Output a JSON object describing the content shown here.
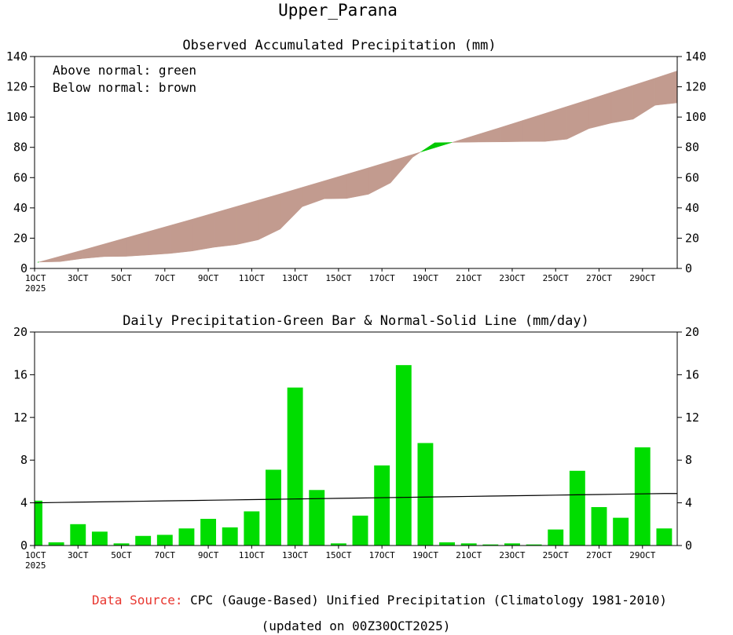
{
  "title": "Upper_Parana",
  "chart_data": [
    {
      "type": "area",
      "title": "Observed Accumulated Precipitation (mm)",
      "annotations": [
        "Above normal: green",
        "Below normal: brown"
      ],
      "x": [
        "1OCT",
        "2OCT",
        "3OCT",
        "4OCT",
        "5OCT",
        "6OCT",
        "7OCT",
        "8OCT",
        "9OCT",
        "10OCT",
        "11OCT",
        "12OCT",
        "13OCT",
        "14OCT",
        "15OCT",
        "16OCT",
        "17OCT",
        "18OCT",
        "19OCT",
        "20OCT",
        "21OCT",
        "22OCT",
        "23OCT",
        "24OCT",
        "25OCT",
        "26OCT",
        "27OCT",
        "28OCT",
        "29OCT",
        "30OCT"
      ],
      "xtick_labels": [
        "1OCT",
        "3OCT",
        "5OCT",
        "7OCT",
        "9OCT",
        "11OCT",
        "13OCT",
        "15OCT",
        "17OCT",
        "19OCT",
        "21OCT",
        "23OCT",
        "25OCT",
        "27OCT",
        "29OCT"
      ],
      "xtick_year": "2025",
      "series": [
        {
          "name": "Observed",
          "values": [
            4.2,
            4.5,
            6.5,
            7.8,
            8.0,
            8.9,
            9.9,
            11.5,
            14.0,
            15.7,
            18.9,
            26.0,
            40.8,
            46.0,
            46.2,
            49.0,
            56.5,
            73.4,
            83.0,
            83.3,
            83.5,
            83.6,
            83.8,
            83.9,
            85.4,
            92.4,
            96.0,
            98.6,
            107.8,
            109.4
          ]
        },
        {
          "name": "Normal",
          "values": [
            4.0,
            8.0,
            12.0,
            16.1,
            20.2,
            24.3,
            28.4,
            32.5,
            36.7,
            40.9,
            45.1,
            49.3,
            53.6,
            57.9,
            62.2,
            66.5,
            70.9,
            75.3,
            79.7,
            84.2,
            88.7,
            93.2,
            97.8,
            102.4,
            107.0,
            111.6,
            116.3,
            121.0,
            125.7,
            130.5
          ]
        }
      ],
      "ylim": [
        0,
        140
      ],
      "yticks": [
        0,
        20,
        40,
        60,
        80,
        100,
        120,
        140
      ],
      "colors": {
        "above": "#00c800",
        "below": "#c29b8f"
      }
    },
    {
      "type": "bar",
      "title": "Daily Precipitation-Green Bar & Normal-Solid Line (mm/day)",
      "categories": [
        "1OCT",
        "2OCT",
        "3OCT",
        "4OCT",
        "5OCT",
        "6OCT",
        "7OCT",
        "8OCT",
        "9OCT",
        "10OCT",
        "11OCT",
        "12OCT",
        "13OCT",
        "14OCT",
        "15OCT",
        "16OCT",
        "17OCT",
        "18OCT",
        "19OCT",
        "20OCT",
        "21OCT",
        "22OCT",
        "23OCT",
        "24OCT",
        "25OCT",
        "26OCT",
        "27OCT",
        "28OCT",
        "29OCT",
        "30OCT"
      ],
      "xtick_labels": [
        "1OCT",
        "3OCT",
        "5OCT",
        "7OCT",
        "9OCT",
        "11OCT",
        "13OCT",
        "15OCT",
        "17OCT",
        "19OCT",
        "21OCT",
        "23OCT",
        "25OCT",
        "27OCT",
        "29OCT"
      ],
      "xtick_year": "2025",
      "series": [
        {
          "name": "Daily Precipitation",
          "type": "bar",
          "values": [
            4.2,
            0.3,
            2.0,
            1.3,
            0.2,
            0.9,
            1.0,
            1.6,
            2.5,
            1.7,
            3.2,
            7.1,
            14.8,
            5.2,
            0.2,
            2.8,
            7.5,
            16.9,
            9.6,
            0.3,
            0.2,
            0.1,
            0.2,
            0.1,
            1.5,
            7.0,
            3.6,
            2.6,
            9.2,
            1.6
          ]
        },
        {
          "name": "Normal",
          "type": "line",
          "values": [
            4.0,
            4.03,
            4.06,
            4.09,
            4.12,
            4.15,
            4.18,
            4.21,
            4.24,
            4.27,
            4.3,
            4.33,
            4.36,
            4.39,
            4.42,
            4.45,
            4.48,
            4.51,
            4.54,
            4.57,
            4.6,
            4.63,
            4.66,
            4.69,
            4.72,
            4.75,
            4.78,
            4.81,
            4.84,
            4.87
          ]
        }
      ],
      "ylim": [
        0,
        20
      ],
      "yticks": [
        0,
        4,
        8,
        12,
        16,
        20
      ],
      "colors": {
        "bar": "#00dd00",
        "line": "#000000"
      }
    }
  ],
  "footer": {
    "source_label": "Data Source:",
    "source_text": "CPC (Gauge-Based) Unified Precipitation (Climatology 1981-2010)",
    "updated": "(updated on 00Z30OCT2025)"
  }
}
